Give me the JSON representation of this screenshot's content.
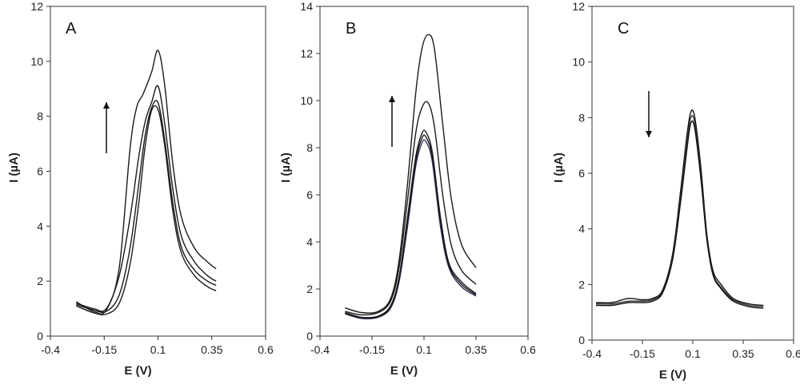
{
  "chart_data": [
    {
      "type": "line",
      "panel_label": "A",
      "xlabel": "E (V)",
      "ylabel": "I (µA)",
      "xlim": [
        -0.4,
        0.6
      ],
      "ylim": [
        0,
        12
      ],
      "xticks": [
        "-0.4",
        "-0.15",
        "0.1",
        "0.35",
        "0.6"
      ],
      "yticks": [
        "0",
        "2",
        "4",
        "6",
        "8",
        "10",
        "12"
      ],
      "grid": false,
      "arrow": "up",
      "series": [
        {
          "x": [
            -0.28,
            -0.2,
            -0.14,
            -0.08,
            -0.03,
            0.01,
            0.04,
            0.07,
            0.1,
            0.13,
            0.17,
            0.21,
            0.27,
            0.33,
            0.37
          ],
          "y": [
            1.1,
            0.85,
            0.8,
            1.2,
            2.6,
            4.8,
            6.9,
            8.2,
            8.25,
            7.0,
            4.5,
            3.0,
            2.2,
            1.8,
            1.65
          ]
        },
        {
          "x": [
            -0.28,
            -0.2,
            -0.14,
            -0.08,
            -0.03,
            0.01,
            0.04,
            0.07,
            0.1,
            0.13,
            0.17,
            0.21,
            0.27,
            0.33,
            0.37
          ],
          "y": [
            1.15,
            0.95,
            0.9,
            1.5,
            3.2,
            5.5,
            7.3,
            8.3,
            8.5,
            7.2,
            4.8,
            3.2,
            2.4,
            2.0,
            1.85
          ]
        },
        {
          "x": [
            -0.28,
            -0.2,
            -0.14,
            -0.08,
            -0.03,
            0.01,
            0.04,
            0.07,
            0.1,
            0.13,
            0.17,
            0.21,
            0.27,
            0.33,
            0.37
          ],
          "y": [
            1.2,
            1.0,
            1.0,
            2.2,
            4.3,
            6.5,
            7.8,
            8.5,
            9.1,
            7.8,
            5.3,
            3.6,
            2.7,
            2.2,
            2.0
          ]
        },
        {
          "x": [
            -0.28,
            -0.2,
            -0.14,
            -0.08,
            -0.03,
            0.0,
            0.03,
            0.07,
            0.1,
            0.13,
            0.17,
            0.21,
            0.27,
            0.33,
            0.37
          ],
          "y": [
            1.25,
            0.9,
            0.95,
            2.5,
            6.8,
            8.3,
            8.8,
            9.6,
            10.4,
            9.2,
            6.2,
            4.3,
            3.2,
            2.7,
            2.45
          ]
        }
      ]
    },
    {
      "type": "line",
      "panel_label": "B",
      "xlabel": "E (V)",
      "ylabel": "I (µA)",
      "xlim": [
        -0.4,
        0.6
      ],
      "ylim": [
        0,
        14
      ],
      "xticks": [
        "-0.4",
        "-0.15",
        "0.1",
        "0.35",
        "0.6"
      ],
      "yticks": [
        "0",
        "2",
        "4",
        "6",
        "8",
        "10",
        "12",
        "14"
      ],
      "grid": false,
      "arrow": "up",
      "series": [
        {
          "x": [
            -0.28,
            -0.2,
            -0.12,
            -0.06,
            -0.02,
            0.02,
            0.06,
            0.09,
            0.11,
            0.14,
            0.18,
            0.22,
            0.28,
            0.35
          ],
          "y": [
            0.95,
            0.75,
            0.8,
            1.2,
            2.3,
            4.6,
            7.2,
            8.2,
            8.25,
            7.4,
            4.6,
            2.9,
            2.1,
            1.7
          ]
        },
        {
          "x": [
            -0.28,
            -0.2,
            -0.12,
            -0.06,
            -0.02,
            0.02,
            0.06,
            0.09,
            0.11,
            0.14,
            0.18,
            0.22,
            0.28,
            0.35
          ],
          "y": [
            0.95,
            0.78,
            0.82,
            1.25,
            2.4,
            4.8,
            7.4,
            8.4,
            8.45,
            7.6,
            4.8,
            3.0,
            2.2,
            1.75
          ]
        },
        {
          "x": [
            -0.28,
            -0.2,
            -0.12,
            -0.06,
            -0.02,
            0.02,
            0.06,
            0.09,
            0.11,
            0.14,
            0.18,
            0.22,
            0.28,
            0.35
          ],
          "y": [
            1.0,
            0.8,
            0.85,
            1.3,
            2.5,
            5.0,
            7.6,
            8.6,
            8.65,
            7.8,
            5.0,
            3.1,
            2.3,
            1.8
          ]
        },
        {
          "x": [
            -0.28,
            -0.2,
            -0.12,
            -0.06,
            -0.02,
            0.02,
            0.06,
            0.09,
            0.12,
            0.15,
            0.19,
            0.23,
            0.28,
            0.35
          ],
          "y": [
            1.05,
            0.9,
            1.0,
            1.5,
            2.9,
            5.7,
            8.6,
            9.7,
            9.9,
            8.9,
            6.0,
            3.9,
            2.8,
            2.2
          ]
        },
        {
          "x": [
            -0.28,
            -0.2,
            -0.12,
            -0.06,
            -0.02,
            0.02,
            0.06,
            0.09,
            0.12,
            0.15,
            0.19,
            0.23,
            0.28,
            0.35
          ],
          "y": [
            1.2,
            1.0,
            1.05,
            1.6,
            3.2,
            6.4,
            10.3,
            12.2,
            12.8,
            12.2,
            9.0,
            5.9,
            3.9,
            2.9
          ]
        }
      ]
    },
    {
      "type": "line",
      "panel_label": "C",
      "xlabel": "E (V)",
      "ylabel": "I (µA)",
      "xlim": [
        -0.4,
        0.6
      ],
      "ylim": [
        0,
        12
      ],
      "xticks": [
        "-0.4",
        "-0.15",
        "0.1",
        "0.35",
        "0.6"
      ],
      "yticks": [
        "0",
        "2",
        "4",
        "6",
        "8",
        "10",
        "12"
      ],
      "grid": false,
      "arrow": "down",
      "series": [
        {
          "x": [
            -0.38,
            -0.3,
            -0.22,
            -0.15,
            -0.1,
            -0.05,
            0.0,
            0.04,
            0.07,
            0.09,
            0.11,
            0.14,
            0.17,
            0.2,
            0.24,
            0.3,
            0.38,
            0.45
          ],
          "y": [
            1.35,
            1.35,
            1.5,
            1.45,
            1.5,
            1.8,
            3.1,
            5.4,
            7.3,
            8.2,
            8.0,
            6.2,
            3.8,
            2.5,
            2.0,
            1.5,
            1.3,
            1.25
          ]
        },
        {
          "x": [
            -0.38,
            -0.3,
            -0.22,
            -0.15,
            -0.1,
            -0.05,
            0.0,
            0.04,
            0.07,
            0.09,
            0.11,
            0.14,
            0.17,
            0.2,
            0.24,
            0.3,
            0.38,
            0.45
          ],
          "y": [
            1.3,
            1.3,
            1.4,
            1.4,
            1.45,
            1.75,
            3.0,
            5.2,
            7.1,
            8.0,
            7.8,
            6.0,
            3.7,
            2.4,
            1.9,
            1.45,
            1.25,
            1.2
          ]
        },
        {
          "x": [
            -0.38,
            -0.3,
            -0.22,
            -0.15,
            -0.1,
            -0.05,
            0.0,
            0.04,
            0.07,
            0.09,
            0.11,
            0.14,
            0.17,
            0.2,
            0.24,
            0.3,
            0.38,
            0.45
          ],
          "y": [
            1.25,
            1.25,
            1.35,
            1.35,
            1.4,
            1.7,
            2.9,
            5.0,
            6.8,
            7.8,
            7.6,
            5.8,
            3.6,
            2.35,
            1.85,
            1.4,
            1.2,
            1.15
          ]
        }
      ]
    }
  ]
}
